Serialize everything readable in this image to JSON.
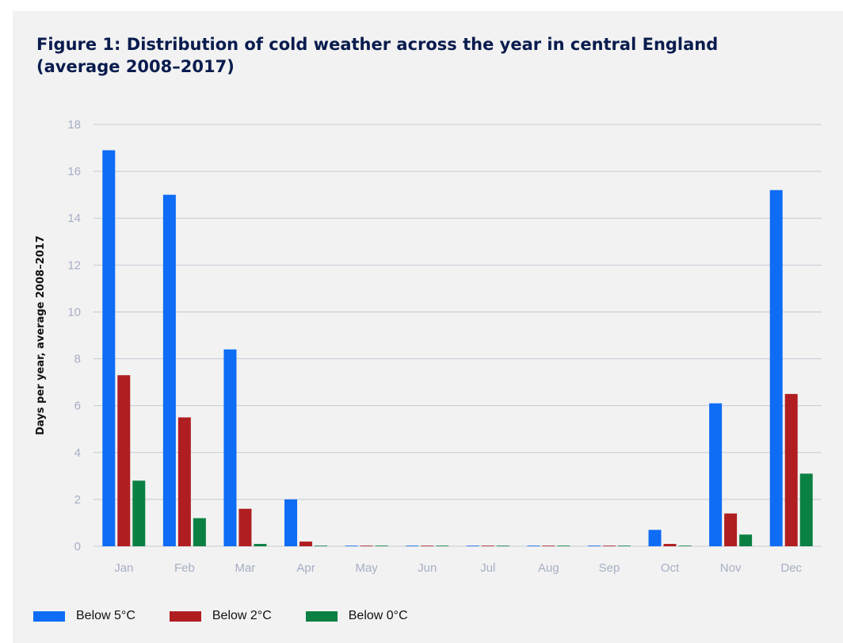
{
  "chart_data": {
    "type": "bar",
    "title": "Figure 1: Distribution of cold weather across the year in central England (average 2008–2017)",
    "xlabel": "",
    "ylabel": "Days per year, average 2008–2017",
    "ylim": [
      0,
      18
    ],
    "yticks": [
      0,
      2,
      4,
      6,
      8,
      10,
      12,
      14,
      16,
      18
    ],
    "grid": true,
    "legend_position": "bottom-left",
    "categories": [
      "Jan",
      "Feb",
      "Mar",
      "Apr",
      "May",
      "Jun",
      "Jul",
      "Aug",
      "Sep",
      "Oct",
      "Nov",
      "Dec"
    ],
    "series": [
      {
        "name": "Below 5°C",
        "color": "#0e6cf5",
        "values": [
          16.9,
          15.0,
          8.4,
          2.0,
          0,
          0,
          0,
          0,
          0,
          0.7,
          6.1,
          15.2
        ]
      },
      {
        "name": "Below 2°C",
        "color": "#b01e21",
        "values": [
          7.3,
          5.5,
          1.6,
          0.2,
          0,
          0,
          0,
          0,
          0,
          0.1,
          1.4,
          6.5
        ]
      },
      {
        "name": "Below 0°C",
        "color": "#0b8043",
        "values": [
          2.8,
          1.2,
          0.1,
          0,
          0,
          0,
          0,
          0,
          0,
          0,
          0.5,
          3.1
        ]
      }
    ]
  }
}
